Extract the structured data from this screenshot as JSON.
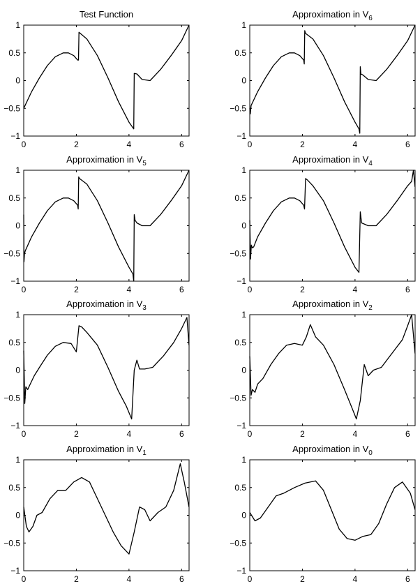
{
  "chart_data": [
    {
      "type": "line",
      "title": "Test Function",
      "title_sub": "",
      "xlim": [
        0,
        6.2832
      ],
      "ylim": [
        -1,
        1
      ],
      "xticks": [
        0,
        2,
        4,
        6
      ],
      "xtick_labels": [
        "0",
        "2",
        "4",
        "6"
      ],
      "yticks": [
        1,
        0.5,
        0,
        -0.5,
        -1
      ],
      "ytick_labels": [
        "1",
        "0.5",
        "0",
        "−0.5",
        "−1"
      ],
      "series": [
        {
          "x": [
            0,
            0.3,
            0.6,
            0.9,
            1.2,
            1.5,
            1.7,
            1.9,
            2.05,
            2.08,
            2.1,
            2.4,
            2.8,
            3.2,
            3.6,
            4.0,
            4.18,
            4.2,
            4.3,
            4.5,
            4.8,
            5.2,
            5.6,
            6.0,
            6.28
          ],
          "y": [
            -0.5,
            -0.2,
            0.05,
            0.27,
            0.43,
            0.5,
            0.5,
            0.45,
            0.37,
            0.37,
            0.87,
            0.75,
            0.45,
            0.05,
            -0.38,
            -0.75,
            -0.87,
            0.13,
            0.12,
            0.02,
            0.0,
            0.2,
            0.45,
            0.72,
            1.0
          ]
        }
      ]
    },
    {
      "type": "line",
      "title": "Approximation in V",
      "title_sub": "6",
      "xlim": [
        0,
        6.2832
      ],
      "ylim": [
        -1,
        1
      ],
      "xticks": [
        0,
        2,
        4,
        6
      ],
      "xtick_labels": [
        "0",
        "2",
        "4",
        "6"
      ],
      "yticks": [
        1,
        0.5,
        0,
        -0.5,
        -1
      ],
      "ytick_labels": [
        "1",
        "0.5",
        "0",
        "−0.5",
        "−1"
      ],
      "series": [
        {
          "x": [
            0,
            0.02,
            0.05,
            0.3,
            0.6,
            0.9,
            1.2,
            1.5,
            1.7,
            1.9,
            2.05,
            2.07,
            2.09,
            2.12,
            2.4,
            2.8,
            3.2,
            3.6,
            4.0,
            4.15,
            4.18,
            4.2,
            4.22,
            4.3,
            4.5,
            4.8,
            5.2,
            5.6,
            6.0,
            6.28
          ],
          "y": [
            -0.5,
            -0.6,
            -0.45,
            -0.2,
            0.05,
            0.27,
            0.43,
            0.5,
            0.5,
            0.45,
            0.37,
            0.3,
            0.9,
            0.85,
            0.75,
            0.45,
            0.05,
            -0.38,
            -0.75,
            -0.87,
            -0.95,
            0.25,
            0.12,
            0.1,
            0.02,
            0.0,
            0.2,
            0.45,
            0.72,
            1.0
          ]
        }
      ]
    },
    {
      "type": "line",
      "title": "Approximation in V",
      "title_sub": "5",
      "xlim": [
        0,
        6.2832
      ],
      "ylim": [
        -1,
        1
      ],
      "xticks": [
        0,
        2,
        4,
        6
      ],
      "xtick_labels": [
        "0",
        "2",
        "4",
        "6"
      ],
      "yticks": [
        1,
        0.5,
        0,
        -0.5,
        -1
      ],
      "ytick_labels": [
        "1",
        "0.5",
        "0",
        "−0.5",
        "−1"
      ],
      "series": [
        {
          "x": [
            0,
            0.01,
            0.03,
            0.06,
            0.3,
            0.6,
            0.9,
            1.2,
            1.5,
            1.7,
            1.9,
            2.05,
            2.07,
            2.09,
            2.12,
            2.4,
            2.8,
            3.2,
            3.6,
            4.0,
            4.15,
            4.18,
            4.2,
            4.23,
            4.3,
            4.5,
            4.8,
            5.2,
            5.6,
            6.0,
            6.28
          ],
          "y": [
            0.2,
            -0.65,
            -0.5,
            -0.45,
            -0.2,
            0.05,
            0.27,
            0.43,
            0.5,
            0.5,
            0.45,
            0.37,
            0.3,
            0.88,
            0.85,
            0.75,
            0.45,
            0.05,
            -0.38,
            -0.75,
            -0.87,
            -1.0,
            0.2,
            0.1,
            0.05,
            0.0,
            0.0,
            0.2,
            0.45,
            0.72,
            1.0
          ]
        }
      ]
    },
    {
      "type": "line",
      "title": "Approximation in V",
      "title_sub": "4",
      "xlim": [
        0,
        6.2832
      ],
      "ylim": [
        -1,
        1
      ],
      "xticks": [
        0,
        2,
        4,
        6
      ],
      "xtick_labels": [
        "0",
        "2",
        "4",
        "6"
      ],
      "yticks": [
        1,
        0.5,
        0,
        -0.5,
        -1
      ],
      "ytick_labels": [
        "1",
        "0.5",
        "0",
        "−0.5",
        "−1"
      ],
      "series": [
        {
          "x": [
            0,
            0.03,
            0.06,
            0.1,
            0.15,
            0.3,
            0.6,
            0.9,
            1.2,
            1.5,
            1.7,
            1.9,
            2.05,
            2.08,
            2.12,
            2.2,
            2.4,
            2.8,
            3.2,
            3.6,
            4.0,
            4.15,
            4.2,
            4.25,
            4.35,
            4.5,
            4.8,
            5.2,
            5.6,
            6.0,
            6.15,
            6.22,
            6.28
          ],
          "y": [
            0.1,
            -0.6,
            -0.35,
            -0.4,
            -0.38,
            -0.2,
            0.05,
            0.27,
            0.43,
            0.5,
            0.5,
            0.45,
            0.37,
            0.3,
            0.85,
            0.82,
            0.72,
            0.45,
            0.05,
            -0.38,
            -0.75,
            -0.84,
            0.25,
            0.05,
            0.03,
            0.0,
            0.0,
            0.2,
            0.45,
            0.72,
            0.8,
            1.0,
            0.7
          ]
        }
      ]
    },
    {
      "type": "line",
      "title": "Approximation in V",
      "title_sub": "3",
      "xlim": [
        0,
        6.2832
      ],
      "ylim": [
        -1,
        1
      ],
      "xticks": [
        0,
        2,
        4,
        6
      ],
      "xtick_labels": [
        "0",
        "2",
        "4",
        "6"
      ],
      "yticks": [
        1,
        0.5,
        0,
        -0.5,
        -1
      ],
      "ytick_labels": [
        "1",
        "0.5",
        "0",
        "−0.5",
        "−1"
      ],
      "series": [
        {
          "x": [
            0,
            0.04,
            0.08,
            0.15,
            0.25,
            0.4,
            0.6,
            0.9,
            1.2,
            1.5,
            1.8,
            2.0,
            2.1,
            2.2,
            2.4,
            2.8,
            3.2,
            3.6,
            3.9,
            4.1,
            4.2,
            4.3,
            4.4,
            4.6,
            4.9,
            5.3,
            5.7,
            6.0,
            6.2,
            6.28
          ],
          "y": [
            0.35,
            -0.6,
            -0.3,
            -0.35,
            -0.25,
            -0.1,
            0.05,
            0.27,
            0.43,
            0.5,
            0.48,
            0.33,
            0.8,
            0.78,
            0.68,
            0.45,
            0.05,
            -0.38,
            -0.65,
            -0.88,
            0.0,
            0.18,
            0.02,
            0.02,
            0.05,
            0.25,
            0.5,
            0.75,
            0.95,
            0.45
          ]
        }
      ]
    },
    {
      "type": "line",
      "title": "Approximation in V",
      "title_sub": "2",
      "xlim": [
        0,
        6.2832
      ],
      "ylim": [
        -1,
        1
      ],
      "xticks": [
        0,
        2,
        4,
        6
      ],
      "xtick_labels": [
        "0",
        "2",
        "4",
        "6"
      ],
      "yticks": [
        1,
        0.5,
        0,
        -0.5,
        -1
      ],
      "ytick_labels": [
        "1",
        "0.5",
        "0",
        "−0.5",
        "−1"
      ],
      "series": [
        {
          "x": [
            0,
            0.05,
            0.1,
            0.2,
            0.3,
            0.5,
            0.8,
            1.1,
            1.4,
            1.7,
            2.0,
            2.15,
            2.3,
            2.5,
            2.8,
            3.2,
            3.6,
            3.9,
            4.05,
            4.2,
            4.35,
            4.5,
            4.7,
            5.0,
            5.4,
            5.8,
            6.0,
            6.15,
            6.28
          ],
          "y": [
            0.25,
            -0.45,
            -0.35,
            -0.4,
            -0.25,
            -0.15,
            0.1,
            0.3,
            0.45,
            0.48,
            0.45,
            0.6,
            0.82,
            0.6,
            0.45,
            0.1,
            -0.35,
            -0.7,
            -0.88,
            -0.55,
            0.1,
            -0.1,
            0.0,
            0.05,
            0.3,
            0.55,
            0.8,
            1.0,
            0.3
          ]
        }
      ]
    },
    {
      "type": "line",
      "title": "Approximation in V",
      "title_sub": "1",
      "xlim": [
        0,
        6.2832
      ],
      "ylim": [
        -1,
        1
      ],
      "xticks": [
        0,
        2,
        4,
        6
      ],
      "xtick_labels": [
        "0",
        "2",
        "4",
        "6"
      ],
      "yticks": [
        1,
        0.5,
        0,
        -0.5,
        -1
      ],
      "ytick_labels": [
        "1",
        "0.5",
        "0",
        "−0.5",
        "−1"
      ],
      "series": [
        {
          "x": [
            0,
            0.1,
            0.2,
            0.35,
            0.5,
            0.7,
            1.0,
            1.3,
            1.6,
            1.9,
            2.2,
            2.5,
            2.8,
            3.1,
            3.4,
            3.7,
            4.0,
            4.2,
            4.4,
            4.6,
            4.8,
            5.1,
            5.4,
            5.7,
            5.95,
            6.1,
            6.28
          ],
          "y": [
            0.15,
            -0.2,
            -0.3,
            -0.2,
            0.0,
            0.05,
            0.3,
            0.45,
            0.45,
            0.6,
            0.68,
            0.6,
            0.3,
            0.0,
            -0.3,
            -0.55,
            -0.7,
            -0.3,
            0.15,
            0.1,
            -0.1,
            0.05,
            0.15,
            0.45,
            0.93,
            0.6,
            0.15
          ]
        }
      ]
    },
    {
      "type": "line",
      "title": "Approximation in V",
      "title_sub": "0",
      "xlim": [
        0,
        6.2832
      ],
      "ylim": [
        -1,
        1
      ],
      "xticks": [
        0,
        2,
        4,
        6
      ],
      "xtick_labels": [
        "0",
        "2",
        "4",
        "6"
      ],
      "yticks": [
        1,
        0.5,
        0,
        -0.5,
        -1
      ],
      "ytick_labels": [
        "1",
        "0.5",
        "0",
        "−0.5",
        "−1"
      ],
      "series": [
        {
          "x": [
            0,
            0.2,
            0.4,
            0.7,
            1.0,
            1.3,
            1.7,
            2.1,
            2.5,
            2.8,
            3.1,
            3.4,
            3.7,
            4.0,
            4.3,
            4.6,
            4.9,
            5.2,
            5.5,
            5.8,
            6.1,
            6.28
          ],
          "y": [
            0.05,
            -0.1,
            -0.05,
            0.15,
            0.35,
            0.4,
            0.5,
            0.58,
            0.62,
            0.45,
            0.1,
            -0.25,
            -0.42,
            -0.45,
            -0.38,
            -0.35,
            -0.15,
            0.2,
            0.5,
            0.6,
            0.4,
            0.1
          ]
        }
      ]
    }
  ]
}
